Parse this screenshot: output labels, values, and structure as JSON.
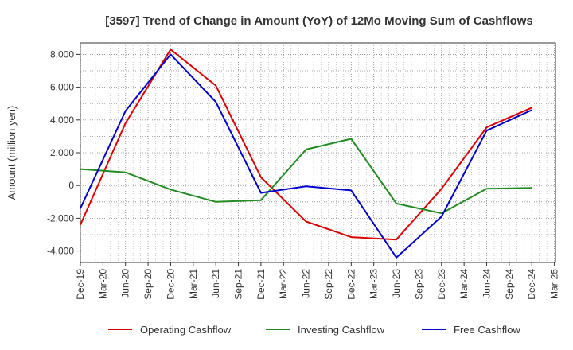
{
  "chart_data": {
    "type": "line",
    "title": "[3597]  Trend of Change in Amount (YoY) of 12Mo Moving Sum of Cashflows",
    "xlabel": "",
    "ylabel": "Amount (million yen)",
    "ylim": [
      -4700,
      8700
    ],
    "yticks": [
      -4000,
      -2000,
      0,
      2000,
      4000,
      6000,
      8000
    ],
    "ytick_labels": [
      "-4,000",
      "-2,000",
      "0",
      "2,000",
      "4,000",
      "6,000",
      "8,000"
    ],
    "categories": [
      "Dec-19",
      "Mar-20",
      "Jun-20",
      "Sep-20",
      "Dec-20",
      "Mar-21",
      "Jun-21",
      "Sep-21",
      "Dec-21",
      "Mar-22",
      "Jun-22",
      "Sep-22",
      "Dec-22",
      "Mar-23",
      "Jun-23",
      "Sep-23",
      "Dec-23",
      "Mar-24",
      "Jun-24",
      "Sep-24",
      "Dec-24",
      "Mar-25"
    ],
    "grid": true,
    "legend_position": "bottom",
    "series": [
      {
        "name": "Operating Cashflow",
        "color": "#dd0000",
        "values": [
          -2400,
          null,
          3800,
          null,
          8300,
          null,
          6100,
          null,
          500,
          null,
          -2200,
          null,
          -3150,
          null,
          -3300,
          null,
          -200,
          null,
          3550,
          null,
          4750,
          null
        ]
      },
      {
        "name": "Investing Cashflow",
        "color": "#228b22",
        "values": [
          1000,
          null,
          800,
          null,
          -250,
          null,
          -1000,
          null,
          -900,
          null,
          2200,
          null,
          2850,
          null,
          -1100,
          null,
          -1700,
          null,
          -200,
          null,
          -150,
          null
        ]
      },
      {
        "name": "Free Cashflow",
        "color": "#0000cc",
        "values": [
          -1400,
          null,
          4550,
          null,
          8000,
          null,
          5100,
          null,
          -450,
          null,
          -50,
          null,
          -300,
          null,
          -4400,
          null,
          -1900,
          null,
          3350,
          null,
          4600,
          null
        ]
      }
    ]
  }
}
